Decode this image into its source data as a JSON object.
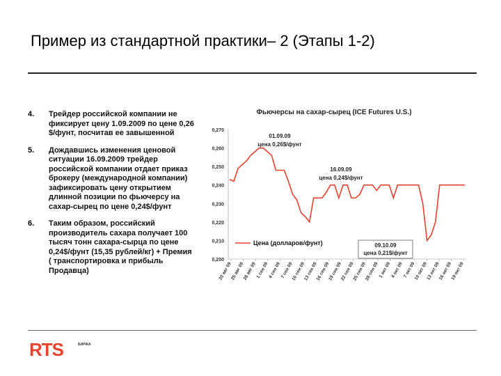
{
  "slide": {
    "title": "Пример из стандартной практики– 2 (Этапы 1-2)"
  },
  "items": [
    {
      "num": "4.",
      "text": "Трейдер российской компании не фиксирует цену 1.09.2009 по цене 0,26 $/фунт, посчитав ее завышенной"
    },
    {
      "num": "5.",
      "text": "Дождавшись изменения ценовой ситуации 16.09.2009 трейдер российской компании отдает приказ брокеру (международной компании) зафиксировать цену открытием длинной позиции по фьючерсу на сахар-сырец по цене 0,24$/фунт"
    },
    {
      "num": "6.",
      "text": "Таким образом, российский производитель сахара получает 100 тысяч тонн сахара-сырца по цене 0,24$/фунт (15,35 рублей/кг) + Премия ( транспортировка и прибыль Продавца)"
    }
  ],
  "logo": {
    "text": "RTS",
    "sub": "БИРЖА"
  },
  "chart_data": {
    "type": "line",
    "title": "Фьючерсы на сахар-сырец (ICE Futures U.S.)",
    "ylim": [
      0.2,
      0.27
    ],
    "yticks": [
      "0,200",
      "0,210",
      "0,220",
      "0,230",
      "0,240",
      "0,250",
      "0,260",
      "0,270"
    ],
    "xticks": [
      "20 авг 09",
      "25 авг 09",
      "28 авг 09",
      "1 сен 09",
      "4 сен 09",
      "7 сен 09",
      "10 сен 09",
      "13 сен 09",
      "16 сен 09",
      "19 сен 09",
      "22 сен 09",
      "25 сен 09",
      "28 сен 09",
      "1 окт 09",
      "4 окт 09",
      "7 окт 09",
      "10 окт 09",
      "13 окт 09",
      "16 окт 09",
      "19 окт 09"
    ],
    "legend": "Цена (долларов/фунт)",
    "legend_color": "#e8412c",
    "series": [
      {
        "color": "#e8412c",
        "values": [
          0.243,
          0.242,
          0.249,
          0.251,
          0.253,
          0.256,
          0.258,
          0.26,
          0.26,
          0.258,
          0.256,
          0.248,
          0.248,
          0.248,
          0.242,
          0.235,
          0.232,
          0.225,
          0.223,
          0.22,
          0.233,
          0.233,
          0.233,
          0.236,
          0.24,
          0.24,
          0.233,
          0.24,
          0.24,
          0.233,
          0.233,
          0.235,
          0.24,
          0.24,
          0.24,
          0.237,
          0.24,
          0.24,
          0.24,
          0.233,
          0.24,
          0.24,
          0.24,
          0.24,
          0.24,
          0.24,
          0.23,
          0.21,
          0.213,
          0.22,
          0.24,
          0.24,
          0.24,
          0.24,
          0.24,
          0.24,
          0.24
        ]
      }
    ],
    "annotations": [
      {
        "lines": [
          "01.09.09",
          "цена 0,26$/фунт"
        ]
      },
      {
        "lines": [
          "16.09.09",
          "цена 0,24$/фунт"
        ]
      },
      {
        "lines": [
          "09.10.09",
          "цена 0,21$/фунт"
        ]
      }
    ]
  }
}
